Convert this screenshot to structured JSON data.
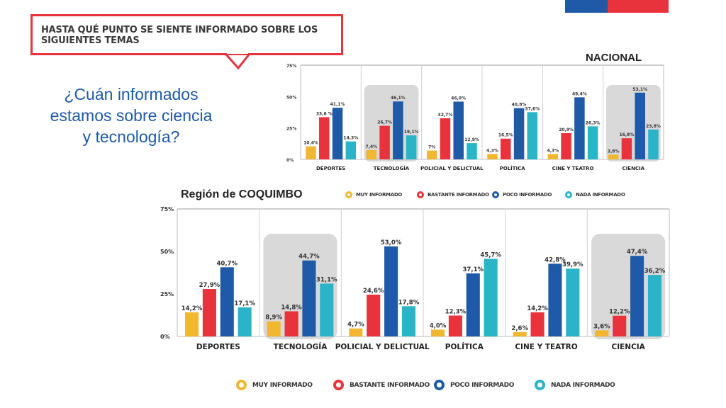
{
  "header": {
    "callout_text": "Hasta qué punto se siente informado sobre los siguientes temas",
    "question_line1": "¿Cuán informados",
    "question_line2": "estamos sobre ciencia",
    "question_line3": "y tecnología?",
    "nacional_label": "NACIONAL",
    "region_label": "Región de COQUIMBO",
    "flag_colors": [
      "#1e5aa8",
      "#e8323c"
    ]
  },
  "legend": [
    {
      "label": "MUY INFORMADO",
      "color": "#f2b731"
    },
    {
      "label": "BASTANTE INFORMADO",
      "color": "#e8323c"
    },
    {
      "label": "POCO INFORMADO",
      "color": "#1e5aa8"
    },
    {
      "label": "NADA INFORMADO",
      "color": "#29b4c8"
    }
  ],
  "chart_data": [
    {
      "type": "bar",
      "title": "NACIONAL",
      "categories": [
        "DEPORTES",
        "TECNOLOGÍA",
        "POLICIAL Y DELICTUAL",
        "POLÍTICA",
        "CINE Y TEATRO",
        "CIENCIA"
      ],
      "highlighted_categories": [
        "TECNOLOGÍA",
        "CIENCIA"
      ],
      "yticks": [
        "0%",
        "25%",
        "50%",
        "75%"
      ],
      "ylim": [
        0,
        75
      ],
      "grid": false,
      "series": [
        {
          "name": "MUY INFORMADO",
          "values": [
            10.4,
            7.4,
            7,
            4.3,
            4.3,
            3.8
          ],
          "labels": [
            "10,4%",
            "7,4%",
            "7%",
            "4,3%",
            "4,3%",
            "3,8%"
          ]
        },
        {
          "name": "BASTANTE INFORMADO",
          "values": [
            33.6,
            26.7,
            32.7,
            16.5,
            20.9,
            16.8
          ],
          "labels": [
            "33,6 %",
            "26,7%",
            "32,7%",
            "16,5%",
            "20,9%",
            "16,8%"
          ]
        },
        {
          "name": "POCO INFORMADO",
          "values": [
            41.1,
            46.1,
            46.0,
            40.8,
            49.4,
            53.1
          ],
          "labels": [
            "41,1%",
            "46,1%",
            "46,0%",
            "40,8%",
            "49,4%",
            "53,1%"
          ]
        },
        {
          "name": "NADA INFORMADO",
          "values": [
            14.3,
            19.1,
            12.9,
            37.6,
            26.3,
            23.8
          ],
          "labels": [
            "14,3%",
            "19,1%",
            "12,9%",
            "37,6%",
            "26,3%",
            "23,8%"
          ]
        }
      ]
    },
    {
      "type": "bar",
      "title": "Región de COQUIMBO",
      "categories": [
        "DEPORTES",
        "TECNOLOGÍA",
        "POLICIAL Y DELICTUAL",
        "POLÍTICA",
        "CINE Y TEATRO",
        "CIENCIA"
      ],
      "highlighted_categories": [
        "TECNOLOGÍA",
        "CIENCIA"
      ],
      "yticks": [
        "0%",
        "25%",
        "50%",
        "75%"
      ],
      "ylim": [
        0,
        75
      ],
      "grid": false,
      "series": [
        {
          "name": "MUY INFORMADO",
          "values": [
            14.2,
            8.9,
            4.7,
            4.0,
            2.6,
            3.6
          ],
          "labels": [
            "14,2%",
            "8,9%",
            "4,7%",
            "4,0%",
            "2,6%",
            "3,6%"
          ]
        },
        {
          "name": "BASTANTE INFORMADO",
          "values": [
            27.9,
            14.8,
            24.6,
            12.3,
            14.2,
            12.2
          ],
          "labels": [
            "27,9%",
            "14,8%",
            "24,6%",
            "12,3%",
            "14,2%",
            "12,2%"
          ]
        },
        {
          "name": "POCO INFORMADO",
          "values": [
            40.7,
            44.7,
            53.0,
            37.1,
            42.8,
            47.4
          ],
          "labels": [
            "40,7%",
            "44,7%",
            "53,0%",
            "37,1%",
            "42,8%",
            "47,4%"
          ]
        },
        {
          "name": "NADA INFORMADO",
          "values": [
            17.1,
            31.1,
            17.8,
            45.7,
            39.9,
            36.2
          ],
          "labels": [
            "17,1%",
            "31,1%",
            "17,8%",
            "45,7%",
            "39,9%",
            "36,2%"
          ]
        }
      ]
    }
  ]
}
